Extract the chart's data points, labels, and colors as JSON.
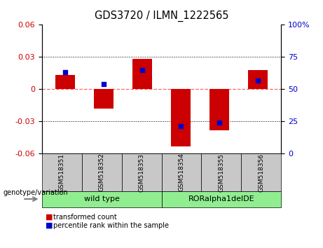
{
  "title": "GDS3720 / ILMN_1222565",
  "samples": [
    "GSM518351",
    "GSM518352",
    "GSM518353",
    "GSM518354",
    "GSM518355",
    "GSM518356"
  ],
  "red_bars": [
    0.013,
    -0.018,
    0.028,
    -0.053,
    -0.038,
    0.018
  ],
  "blue_dots": [
    0.016,
    0.005,
    0.018,
    -0.034,
    -0.031,
    0.008
  ],
  "ylim_left": [
    -0.06,
    0.06
  ],
  "ylim_right": [
    0,
    100
  ],
  "yticks_left": [
    -0.06,
    -0.03,
    0,
    0.03,
    0.06
  ],
  "yticks_right": [
    0,
    25,
    50,
    75,
    100
  ],
  "red_color": "#CC0000",
  "blue_color": "#0000CC",
  "zero_line_color": "#FF6666",
  "grid_color": "#000000",
  "bg_plot": "#FFFFFF",
  "sample_box_color": "#C8C8C8",
  "group_color": "#90EE90",
  "legend_red_label": "transformed count",
  "legend_blue_label": "percentile rank within the sample",
  "bar_width": 0.5,
  "blue_dot_size": 20,
  "groups": [
    {
      "label": "wild type",
      "start": 0,
      "end": 3
    },
    {
      "label": "RORalpha1delDE",
      "start": 3,
      "end": 6
    }
  ]
}
